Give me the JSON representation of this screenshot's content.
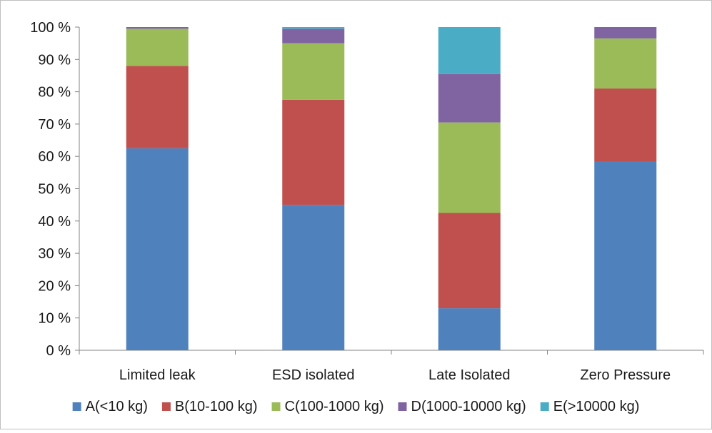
{
  "chart_data": {
    "type": "bar",
    "stacked": true,
    "categories": [
      "Limited leak",
      "ESD isolated",
      "Late Isolated",
      "Zero Pressure"
    ],
    "series": [
      {
        "name": "A(<10 kg)",
        "color": "#4F81BD",
        "values": [
          62.5,
          45.0,
          13.0,
          58.5
        ]
      },
      {
        "name": "B(10-100 kg)",
        "color": "#C0504D",
        "values": [
          25.5,
          32.5,
          29.5,
          22.5
        ]
      },
      {
        "name": "C(100-1000 kg)",
        "color": "#9BBB59",
        "values": [
          11.5,
          17.5,
          28.0,
          15.5
        ]
      },
      {
        "name": "D(1000-10000 kg)",
        "color": "#8064A2",
        "values": [
          0.5,
          4.5,
          15.0,
          3.5
        ]
      },
      {
        "name": "E(>10000 kg)",
        "color": "#4BACC6",
        "values": [
          0.0,
          0.5,
          14.5,
          0.0
        ]
      }
    ],
    "ylim": [
      0,
      100
    ],
    "yticks": [
      "0 %",
      "10 %",
      "20 %",
      "30 %",
      "40 %",
      "50 %",
      "60 %",
      "70 %",
      "80 %",
      "90 %",
      "100 %"
    ],
    "grid": false,
    "legend": "bottom",
    "xlabel": "",
    "ylabel": "",
    "title": ""
  }
}
